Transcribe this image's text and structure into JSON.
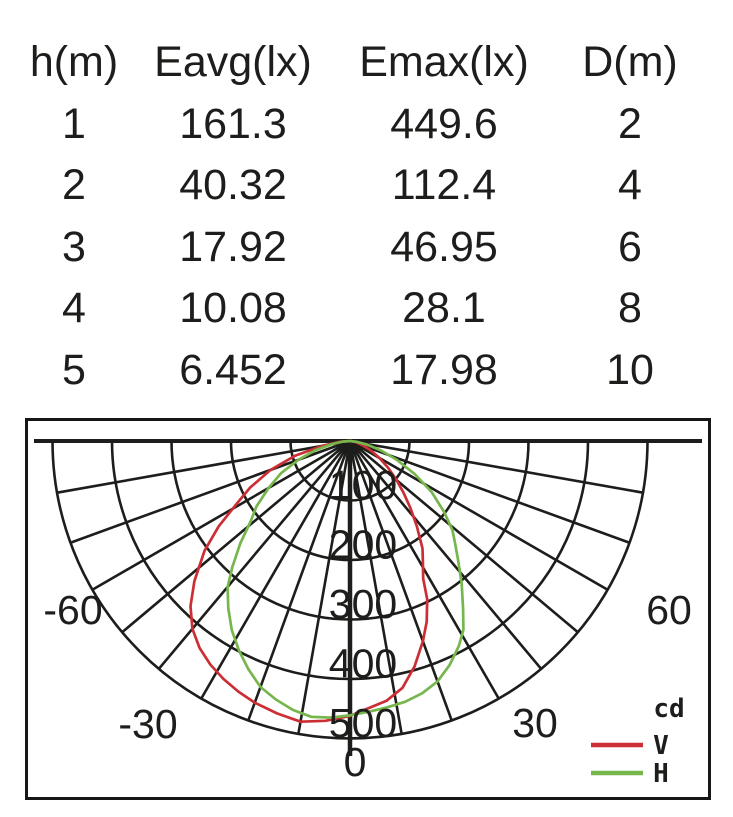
{
  "table": {
    "headers": [
      "h(m)",
      "Eavg(lx)",
      "Emax(lx)",
      "D(m)"
    ],
    "rows": [
      [
        "1",
        "161.3",
        "449.6",
        "2"
      ],
      [
        "2",
        "40.32",
        "112.4",
        "4"
      ],
      [
        "3",
        "17.92",
        "46.95",
        "6"
      ],
      [
        "4",
        "10.08",
        "28.1",
        "8"
      ],
      [
        "5",
        "6.452",
        "17.98",
        "10"
      ]
    ]
  },
  "chart_data": [
    {
      "type": "table",
      "title": "Illuminance vs mounting height",
      "columns": [
        "h(m)",
        "Eavg(lx)",
        "Emax(lx)",
        "D(m)"
      ],
      "rows": [
        [
          1,
          161.3,
          449.6,
          2
        ],
        [
          2,
          40.32,
          112.4,
          4
        ],
        [
          3,
          17.92,
          46.95,
          6
        ],
        [
          4,
          10.08,
          28.1,
          8
        ],
        [
          5,
          6.452,
          17.98,
          10
        ]
      ]
    },
    {
      "type": "line",
      "subtype": "polar-intensity",
      "units_label": "cd",
      "angle_tick_labels": [
        "-60",
        "-30",
        "0",
        "30",
        "60"
      ],
      "angle_tick_values_deg": [
        -60,
        -30,
        0,
        30,
        60
      ],
      "angle_grid_step_deg": 10,
      "angle_range_deg": [
        -90,
        90
      ],
      "radial_tick_labels": [
        "100",
        "200",
        "300",
        "400",
        "500"
      ],
      "radial_tick_values": [
        100,
        200,
        300,
        400,
        500
      ],
      "radial_max": 500,
      "grid_color": "#1d1d1b",
      "legend": {
        "unit": "cd",
        "items": [
          {
            "label": "V"
          },
          {
            "label": "H"
          }
        ]
      },
      "series": [
        {
          "name": "V",
          "color": "#cb2f35",
          "points_deg_cd": [
            [
              -90,
              0
            ],
            [
              -85,
              18
            ],
            [
              -80,
              48
            ],
            [
              -75,
              95
            ],
            [
              -70,
              142
            ],
            [
              -65,
              185
            ],
            [
              -61,
              218
            ],
            [
              -57,
              263
            ],
            [
              -53,
              306
            ],
            [
              -48,
              352
            ],
            [
              -44,
              386
            ],
            [
              -40,
              412
            ],
            [
              -36,
              430
            ],
            [
              -32,
              443
            ],
            [
              -28,
              453
            ],
            [
              -24,
              461
            ],
            [
              -20,
              468
            ],
            [
              -15,
              474
            ],
            [
              -10,
              479
            ],
            [
              -5,
              472
            ],
            [
              0,
              462
            ],
            [
              4,
              450
            ],
            [
              8,
              441
            ],
            [
              12,
              424
            ],
            [
              16,
              394
            ],
            [
              20,
              358
            ],
            [
              23,
              330
            ],
            [
              26,
              296
            ],
            [
              28,
              262
            ],
            [
              31,
              238
            ],
            [
              34,
              218
            ],
            [
              38,
              183
            ],
            [
              42,
              152
            ],
            [
              46,
              125
            ],
            [
              50,
              102
            ],
            [
              55,
              78
            ],
            [
              60,
              57
            ],
            [
              65,
              40
            ],
            [
              70,
              26
            ],
            [
              75,
              15
            ],
            [
              80,
              8
            ],
            [
              85,
              3
            ],
            [
              90,
              0
            ]
          ]
        },
        {
          "name": "H",
          "color": "#77b64c",
          "points_deg_cd": [
            [
              -90,
              0
            ],
            [
              -85,
              12
            ],
            [
              -80,
              32
            ],
            [
              -75,
              60
            ],
            [
              -70,
              92
            ],
            [
              -65,
              128
            ],
            [
              -60,
              158
            ],
            [
              -55,
              192
            ],
            [
              -51,
              215
            ],
            [
              -47,
              252
            ],
            [
              -43,
              290
            ],
            [
              -40,
              320
            ],
            [
              -36,
              348
            ],
            [
              -32,
              375
            ],
            [
              -28,
              398
            ],
            [
              -24,
              420
            ],
            [
              -20,
              440
            ],
            [
              -16,
              452
            ],
            [
              -12,
              462
            ],
            [
              -8,
              468
            ],
            [
              -4,
              466
            ],
            [
              0,
              461
            ],
            [
              4,
              456
            ],
            [
              8,
              452
            ],
            [
              12,
              448
            ],
            [
              16,
              441
            ],
            [
              20,
              430
            ],
            [
              24,
              412
            ],
            [
              28,
              390
            ],
            [
              31,
              370
            ],
            [
              34,
              340
            ],
            [
              38,
              305
            ],
            [
              42,
              272
            ],
            [
              46,
              245
            ],
            [
              49,
              228
            ],
            [
              53,
              198
            ],
            [
              58,
              162
            ],
            [
              63,
              122
            ],
            [
              68,
              85
            ],
            [
              73,
              55
            ],
            [
              78,
              30
            ],
            [
              83,
              12
            ],
            [
              90,
              0
            ]
          ]
        }
      ]
    }
  ]
}
